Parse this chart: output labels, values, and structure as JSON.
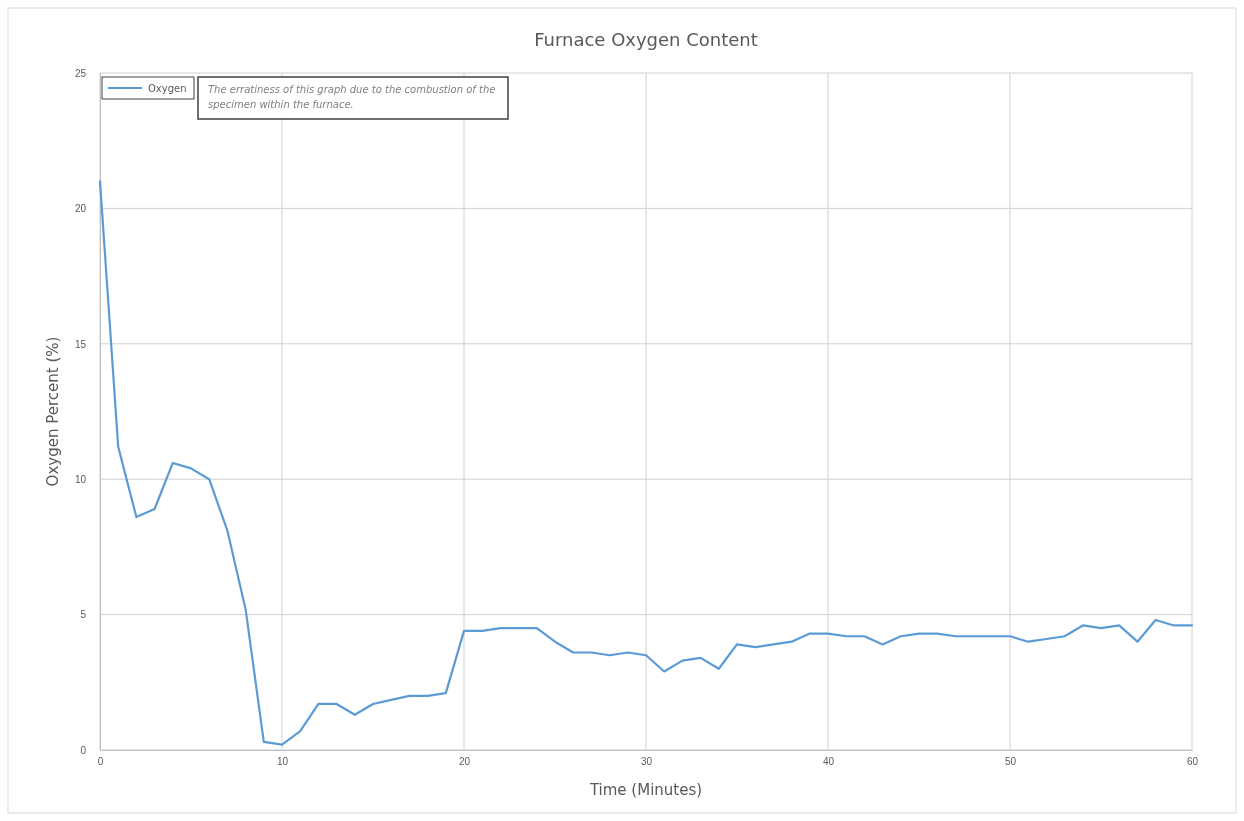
{
  "chart_data": {
    "type": "line",
    "title": "Furnace Oxygen Content",
    "xlabel": "Time (Minutes)",
    "ylabel": "Oxygen Percent (%)",
    "annotations": [
      "The erratiness of this graph due to the combustion of the specimen within the furnace."
    ],
    "x": [
      0,
      1,
      2,
      3,
      4,
      5,
      6,
      7,
      8,
      9,
      10,
      11,
      12,
      13,
      14,
      15,
      16,
      17,
      18,
      19,
      20,
      21,
      22,
      23,
      24,
      25,
      26,
      27,
      28,
      29,
      30,
      31,
      32,
      33,
      34,
      35,
      36,
      37,
      38,
      39,
      40,
      41,
      42,
      43,
      44,
      45,
      46,
      47,
      48,
      49,
      50,
      51,
      52,
      53,
      54,
      55,
      56,
      57,
      58,
      59,
      60
    ],
    "series": [
      {
        "name": "Oxygen",
        "color": "#5b9bd5",
        "values": [
          21.0,
          11.2,
          8.6,
          8.9,
          10.6,
          10.4,
          10.0,
          8.1,
          5.2,
          0.3,
          0.2,
          0.7,
          1.7,
          1.7,
          1.3,
          1.7,
          1.85,
          2.0,
          2.0,
          2.1,
          4.4,
          4.4,
          4.5,
          4.5,
          4.5,
          4.0,
          3.6,
          3.6,
          3.5,
          3.6,
          3.5,
          2.9,
          3.3,
          3.4,
          3.0,
          3.9,
          3.8,
          3.9,
          4.0,
          4.3,
          4.3,
          4.2,
          4.2,
          3.9,
          4.2,
          4.3,
          4.3,
          4.2,
          4.2,
          4.2,
          4.2,
          4.0,
          4.1,
          4.2,
          4.6,
          4.5,
          4.6,
          4.0,
          4.8,
          4.6,
          4.6
        ]
      }
    ],
    "xlim": [
      0,
      60
    ],
    "xticks": [
      0,
      10,
      20,
      30,
      40,
      50,
      60
    ],
    "ylim": [
      0,
      25
    ],
    "yticks": [
      0,
      5,
      10,
      15,
      20,
      25
    ],
    "grid": true,
    "legend": "top left",
    "marker": "none",
    "line_style": "solid"
  }
}
